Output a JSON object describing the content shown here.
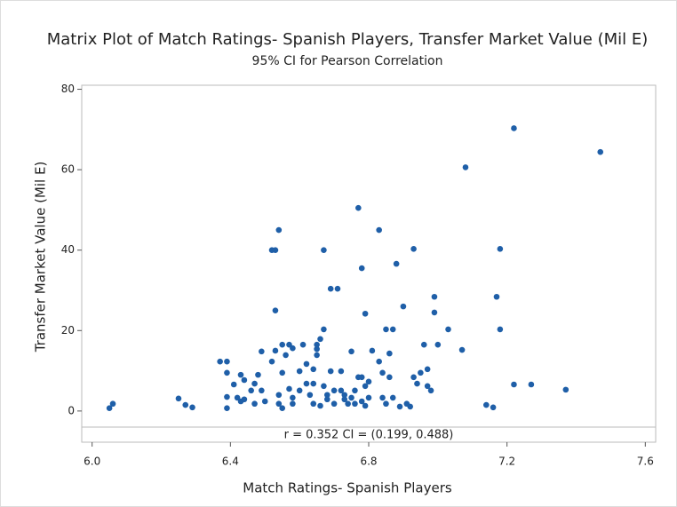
{
  "chart_data": {
    "type": "scatter",
    "title": "Matrix Plot of Match Ratings- Spanish Players, Transfer Market Value (Mil E)",
    "subtitle": "95% CI for Pearson Correlation",
    "xlabel": "Match Ratings- Spanish Players",
    "ylabel": "Transfer Market Value (Mil E)",
    "annotation": "r = 0.352  CI = (0.199, 0.488)",
    "color": "#1f5fa8",
    "xlim": [
      5.97,
      7.63
    ],
    "ylim": [
      -4,
      81
    ],
    "xticks": [
      {
        "value": 6,
        "label": "6.0"
      },
      6.4,
      6.8,
      7.2,
      7.6
    ],
    "yticks": [
      0,
      20,
      40,
      60,
      80
    ],
    "x": [
      6.05,
      6.06,
      6.25,
      6.27,
      6.29,
      6.37,
      6.39,
      6.39,
      6.39,
      6.39,
      6.41,
      6.42,
      6.43,
      6.43,
      6.44,
      6.44,
      6.46,
      6.47,
      6.47,
      6.48,
      6.49,
      6.49,
      6.5,
      6.52,
      6.53,
      6.54,
      6.53,
      6.52,
      6.53,
      6.54,
      6.54,
      6.55,
      6.55,
      6.55,
      6.56,
      6.57,
      6.57,
      6.58,
      6.58,
      6.58,
      6.6,
      6.6,
      6.61,
      6.62,
      6.62,
      6.63,
      6.64,
      6.64,
      6.64,
      6.65,
      6.65,
      6.65,
      6.66,
      6.66,
      6.67,
      6.67,
      6.67,
      6.68,
      6.68,
      6.69,
      6.69,
      6.7,
      6.7,
      6.71,
      6.72,
      6.72,
      6.73,
      6.73,
      6.74,
      6.75,
      6.75,
      6.76,
      6.76,
      6.77,
      6.77,
      6.78,
      6.78,
      6.78,
      6.79,
      6.79,
      6.79,
      6.8,
      6.8,
      6.81,
      6.83,
      6.83,
      6.84,
      6.84,
      6.85,
      6.85,
      6.86,
      6.86,
      6.87,
      6.87,
      6.88,
      6.89,
      6.9,
      6.91,
      6.92,
      6.93,
      6.93,
      6.94,
      6.95,
      6.96,
      6.97,
      6.97,
      6.98,
      6.99,
      6.99,
      7.0,
      7.03,
      7.07,
      7.08,
      7.14,
      7.16,
      7.17,
      7.18,
      7.18,
      7.22,
      7.22,
      7.27,
      7.37,
      7.47
    ],
    "values": [
      0.7,
      1.8,
      3.1,
      1.5,
      0.9,
      12.3,
      12.3,
      9.5,
      3.5,
      0.7,
      6.6,
      3.3,
      2.4,
      9,
      7.7,
      2.9,
      5.1,
      1.8,
      6.8,
      9,
      14.8,
      5.1,
      2.4,
      40,
      40,
      45,
      25,
      12.3,
      15,
      4,
      1.8,
      0.7,
      16.5,
      9.5,
      13.9,
      5.5,
      16.5,
      1.8,
      15.6,
      3.3,
      5.1,
      9.9,
      16.5,
      6.8,
      11.7,
      4,
      1.8,
      10.4,
      6.8,
      15.4,
      13.9,
      16.5,
      1.3,
      17.9,
      40,
      6.2,
      20.3,
      4,
      2.9,
      9.9,
      30.4,
      5.1,
      1.8,
      30.4,
      9.9,
      5.1,
      2.9,
      4,
      1.8,
      3.3,
      14.8,
      5.1,
      1.8,
      8.4,
      50.5,
      2.4,
      8.4,
      35.5,
      6.2,
      1.3,
      24.2,
      7.3,
      3.3,
      15,
      12.3,
      45,
      9.5,
      3.3,
      1.8,
      20.3,
      14.3,
      8.4,
      20.3,
      3.3,
      36.6,
      1.1,
      26,
      1.8,
      1.1,
      8.4,
      40.3,
      6.8,
      9.5,
      16.5,
      6.2,
      10.4,
      5.1,
      28.4,
      24.5,
      16.5,
      20.3,
      15.2,
      60.6,
      1.5,
      0.9,
      28.4,
      20.3,
      40.3,
      70.3,
      6.6,
      6.6,
      5.3,
      64.4
    ]
  }
}
